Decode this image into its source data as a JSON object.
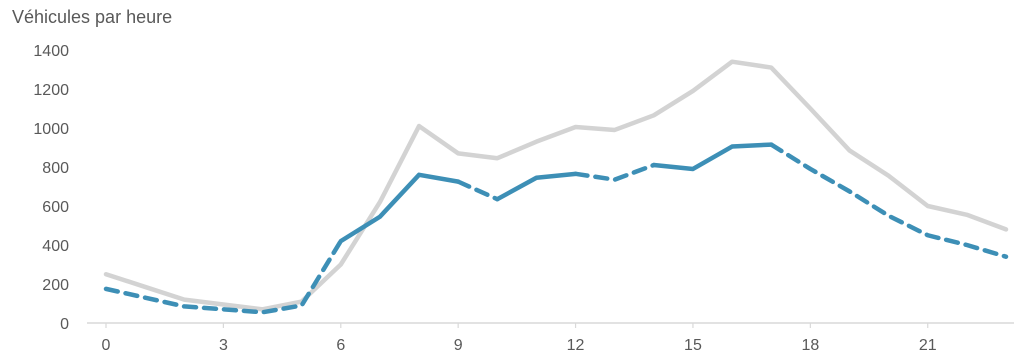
{
  "chart_data": {
    "type": "line",
    "title": "Véhicules par heure",
    "xlabel": "",
    "ylabel": "",
    "x": [
      0,
      1,
      2,
      3,
      4,
      5,
      6,
      7,
      8,
      9,
      10,
      11,
      12,
      13,
      14,
      15,
      16,
      17,
      18,
      19,
      20,
      21,
      22,
      23
    ],
    "x_ticks": [
      0,
      3,
      6,
      9,
      12,
      15,
      18,
      21
    ],
    "y_ticks": [
      0,
      200,
      400,
      600,
      800,
      1000,
      1200,
      1400
    ],
    "ylim": [
      0,
      1400
    ],
    "xlim": [
      0,
      23
    ],
    "grid": false,
    "legend": "none",
    "series": [
      {
        "color": "#d3d3d3",
        "style": "solid",
        "values": [
          250,
          185,
          120,
          95,
          70,
          110,
          300,
          620,
          1010,
          870,
          845,
          930,
          1005,
          990,
          1065,
          1190,
          1340,
          1310,
          1100,
          885,
          755,
          600,
          555,
          480
        ]
      },
      {
        "color": "#3d8fb6",
        "style": "solid-dashed",
        "values": [
          175,
          130,
          85,
          70,
          55,
          90,
          420,
          545,
          760,
          725,
          635,
          745,
          765,
          735,
          810,
          790,
          905,
          915,
          790,
          675,
          550,
          450,
          400,
          340
        ],
        "dashed_hours": [
          [
            0,
            6
          ],
          [
            9,
            10
          ],
          [
            12,
            14
          ],
          [
            17,
            23
          ]
        ]
      }
    ],
    "colors": {
      "axis": "#d9d9d9",
      "text": "#595959"
    }
  }
}
